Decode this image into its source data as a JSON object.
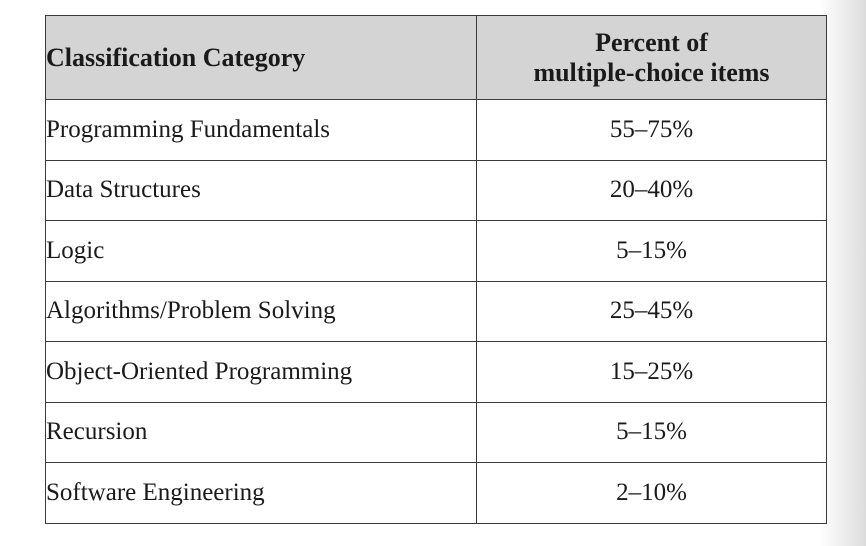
{
  "table": {
    "header": {
      "category": "Classification Category",
      "percent_line1": "Percent of",
      "percent_line2": "multiple-choice items"
    },
    "rows": [
      {
        "category": "Programming Fundamentals",
        "percent": "55–75%"
      },
      {
        "category": "Data Structures",
        "percent": "20–40%"
      },
      {
        "category": "Logic",
        "percent": "5–15%"
      },
      {
        "category": "Algorithms/Problem Solving",
        "percent": "25–45%"
      },
      {
        "category": "Object-Oriented Programming",
        "percent": "15–25%"
      },
      {
        "category": "Recursion",
        "percent": "5–15%"
      },
      {
        "category": "Software Engineering",
        "percent": "2–10%"
      }
    ]
  }
}
